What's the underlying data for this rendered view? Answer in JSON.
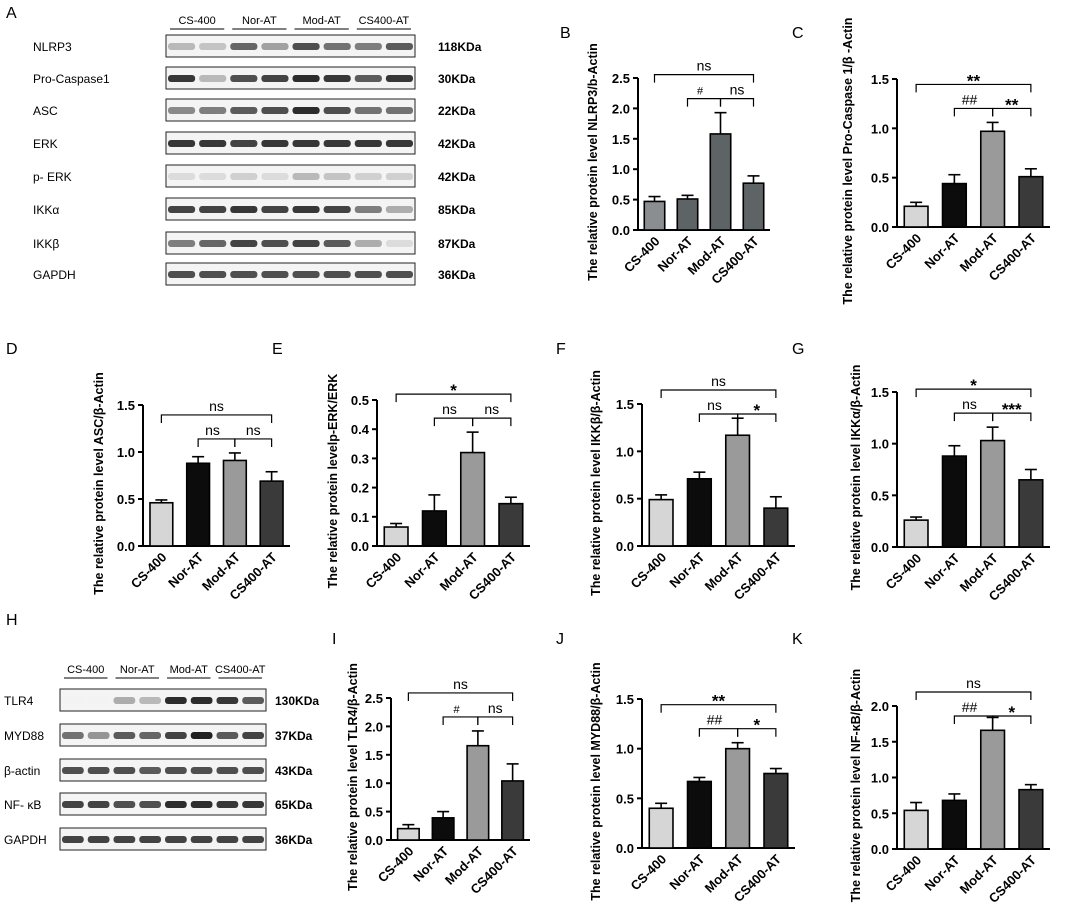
{
  "colors": {
    "light": "#d6d6d6",
    "black": "#0c0c0c",
    "midgray": "#9a9a9a",
    "dark": "#3a3a3a",
    "slate": "#5e6366",
    "slateLight": "#8a8e90"
  },
  "blot_top": {
    "letter": "A",
    "groups": [
      "CS-400",
      "Nor-AT",
      "Mod-AT",
      "CS400-AT"
    ],
    "rows": [
      {
        "name": "NLRP3",
        "size": "118KDa",
        "bands": [
          0.3,
          0.25,
          0.65,
          0.4,
          0.75,
          0.6,
          0.55,
          0.7
        ]
      },
      {
        "name": "Pro-Caspase1",
        "size": "30KDa",
        "bands": [
          0.85,
          0.3,
          0.75,
          0.8,
          0.9,
          0.85,
          0.7,
          0.85
        ]
      },
      {
        "name": "ASC",
        "size": "22KDa",
        "bands": [
          0.5,
          0.55,
          0.7,
          0.75,
          0.9,
          0.75,
          0.6,
          0.6
        ]
      },
      {
        "name": "ERK",
        "size": "42KDa",
        "bands": [
          0.85,
          0.85,
          0.8,
          0.85,
          0.85,
          0.85,
          0.85,
          0.85
        ]
      },
      {
        "name": "p- ERK",
        "size": "42KDa",
        "bands": [
          0.15,
          0.15,
          0.2,
          0.15,
          0.3,
          0.25,
          0.2,
          0.2
        ]
      },
      {
        "name": "IKKα",
        "size": "85KDa",
        "bands": [
          0.8,
          0.8,
          0.85,
          0.8,
          0.85,
          0.8,
          0.55,
          0.35
        ]
      },
      {
        "name": "IKKβ",
        "size": "87KDa",
        "bands": [
          0.55,
          0.65,
          0.8,
          0.75,
          0.8,
          0.7,
          0.35,
          0.15
        ]
      },
      {
        "name": "GAPDH",
        "size": "36KDa",
        "bands": [
          0.75,
          0.75,
          0.75,
          0.75,
          0.75,
          0.75,
          0.75,
          0.75
        ]
      }
    ]
  },
  "blot_bottom": {
    "letter": "H",
    "groups": [
      "CS-400",
      "Nor-AT",
      "Mod-AT",
      "CS400-AT"
    ],
    "rows": [
      {
        "name": "TLR4",
        "size": "130KDa",
        "bands": [
          0.05,
          0.05,
          0.35,
          0.3,
          0.9,
          0.9,
          0.85,
          0.7
        ]
      },
      {
        "name": "MYD88",
        "size": "37KDa",
        "bands": [
          0.6,
          0.45,
          0.7,
          0.65,
          0.8,
          0.95,
          0.7,
          0.8
        ]
      },
      {
        "name": "β-actin",
        "size": "43KDa",
        "bands": [
          0.75,
          0.75,
          0.75,
          0.7,
          0.75,
          0.75,
          0.75,
          0.75
        ]
      },
      {
        "name": "NF- κB",
        "size": "65KDa",
        "bands": [
          0.8,
          0.8,
          0.75,
          0.75,
          0.9,
          0.9,
          0.85,
          0.85
        ]
      },
      {
        "name": "GAPDH",
        "size": "36KDa",
        "bands": [
          0.8,
          0.8,
          0.8,
          0.8,
          0.8,
          0.8,
          0.8,
          0.8
        ]
      }
    ]
  },
  "chart_data": [
    {
      "type": "bar",
      "letter": "B",
      "categories": [
        "CS-400",
        "Nor-AT",
        "Mod-AT",
        "CS400-AT"
      ],
      "values": [
        0.47,
        0.51,
        1.58,
        0.77
      ],
      "errors": [
        0.08,
        0.06,
        0.35,
        0.12
      ],
      "ylabel": "The relative protein level NLRP3/b-Actin",
      "ylim": [
        0,
        2.5
      ],
      "yticks": [
        "0.0",
        "0.5",
        "1.0",
        "1.5",
        "2.0",
        "2.5"
      ],
      "palette": "slate",
      "annotations": [
        {
          "from": 0,
          "to": 3,
          "text": "ns"
        },
        {
          "from": 1,
          "to": 2,
          "text": "#"
        },
        {
          "from": 2,
          "to": 3,
          "text": "ns"
        }
      ]
    },
    {
      "type": "bar",
      "letter": "C",
      "categories": [
        "CS-400",
        "Nor-AT",
        "Mod-AT",
        "CS400-AT"
      ],
      "values": [
        0.21,
        0.44,
        0.97,
        0.51
      ],
      "errors": [
        0.04,
        0.09,
        0.09,
        0.08
      ],
      "ylabel": "The relative protein level Pro-Caspase 1/β -Actin",
      "ylim": [
        0,
        1.5
      ],
      "yticks": [
        "0.0",
        "0.5",
        "1.0",
        "1.5"
      ],
      "palette": "standard",
      "annotations": [
        {
          "from": 0,
          "to": 3,
          "text": "**"
        },
        {
          "from": 1,
          "to": 2,
          "text": "##"
        },
        {
          "from": 2,
          "to": 3,
          "text": "**"
        }
      ]
    },
    {
      "type": "bar",
      "letter": "D",
      "categories": [
        "CS-400",
        "Nor-AT",
        "Mod-AT",
        "CS400-AT"
      ],
      "values": [
        0.46,
        0.88,
        0.91,
        0.69
      ],
      "errors": [
        0.03,
        0.07,
        0.08,
        0.1
      ],
      "ylabel": "The relative protein level ASC/β-Actin",
      "ylim": [
        0,
        1.5
      ],
      "yticks": [
        "0.0",
        "0.5",
        "1.0",
        "1.5"
      ],
      "palette": "standard",
      "annotations": [
        {
          "from": 0,
          "to": 3,
          "text": "ns"
        },
        {
          "from": 1,
          "to": 2,
          "text": "ns"
        },
        {
          "from": 2,
          "to": 3,
          "text": "ns"
        }
      ]
    },
    {
      "type": "bar",
      "letter": "E",
      "categories": [
        "CS-400",
        "Nor-AT",
        "Mod-AT",
        "CS400-AT"
      ],
      "values": [
        0.065,
        0.12,
        0.32,
        0.145
      ],
      "errors": [
        0.012,
        0.055,
        0.07,
        0.022
      ],
      "ylabel": "The relative protein levelp-ERK/ERK",
      "ylim": [
        0,
        0.5
      ],
      "yticks": [
        "0.0",
        "0.1",
        "0.2",
        "0.3",
        "0.4",
        "0.5"
      ],
      "palette": "standard",
      "annotations": [
        {
          "from": 0,
          "to": 3,
          "text": "*"
        },
        {
          "from": 1,
          "to": 2,
          "text": "ns"
        },
        {
          "from": 2,
          "to": 3,
          "text": "ns"
        }
      ]
    },
    {
      "type": "bar",
      "letter": "F",
      "categories": [
        "CS-400",
        "Nor-AT",
        "Mod-AT",
        "CS400-AT"
      ],
      "values": [
        0.49,
        0.71,
        1.17,
        0.4
      ],
      "errors": [
        0.05,
        0.07,
        0.18,
        0.12
      ],
      "ylabel": "The relative protein level IKKβ/β-Actin",
      "ylim": [
        0,
        1.5
      ],
      "yticks": [
        "0.0",
        "0.5",
        "1.0",
        "1.5"
      ],
      "palette": "standard",
      "annotations": [
        {
          "from": 0,
          "to": 3,
          "text": "ns"
        },
        {
          "from": 1,
          "to": 2,
          "text": "ns"
        },
        {
          "from": 2,
          "to": 3,
          "text": "*"
        }
      ]
    },
    {
      "type": "bar",
      "letter": "G",
      "categories": [
        "CS-400",
        "Nor-AT",
        "Mod-AT",
        "CS400-AT"
      ],
      "values": [
        0.26,
        0.88,
        1.03,
        0.65
      ],
      "errors": [
        0.03,
        0.1,
        0.13,
        0.1
      ],
      "ylabel": "The relative protein level IKKα/β-Actin",
      "ylim": [
        0,
        1.5
      ],
      "yticks": [
        "0.0",
        "0.5",
        "1.0",
        "1.5"
      ],
      "palette": "standard",
      "annotations": [
        {
          "from": 0,
          "to": 3,
          "text": "*"
        },
        {
          "from": 1,
          "to": 2,
          "text": "ns"
        },
        {
          "from": 2,
          "to": 3,
          "text": "***"
        }
      ]
    },
    {
      "type": "bar",
      "letter": "I",
      "categories": [
        "CS-400",
        "Nor-AT",
        "Mod-AT",
        "CS400-AT"
      ],
      "values": [
        0.2,
        0.39,
        1.66,
        1.04
      ],
      "errors": [
        0.07,
        0.11,
        0.26,
        0.3
      ],
      "ylabel": "The relative protein level TLR4/β-Actin",
      "ylim": [
        0,
        2.5
      ],
      "yticks": [
        "0.0",
        "0.5",
        "1.0",
        "1.5",
        "2.0",
        "2.5"
      ],
      "palette": "standard",
      "annotations": [
        {
          "from": 0,
          "to": 3,
          "text": "ns"
        },
        {
          "from": 1,
          "to": 2,
          "text": "#"
        },
        {
          "from": 2,
          "to": 3,
          "text": "ns"
        }
      ]
    },
    {
      "type": "bar",
      "letter": "J",
      "categories": [
        "CS-400",
        "Nor-AT",
        "Mod-AT",
        "CS400-AT"
      ],
      "values": [
        0.4,
        0.67,
        1.0,
        0.75
      ],
      "errors": [
        0.05,
        0.04,
        0.06,
        0.05
      ],
      "ylabel": "The relative protein level MYD88/β-Actin",
      "ylim": [
        0,
        1.5
      ],
      "yticks": [
        "0.0",
        "0.5",
        "1.0",
        "1.5"
      ],
      "palette": "standard",
      "annotations": [
        {
          "from": 0,
          "to": 3,
          "text": "**"
        },
        {
          "from": 1,
          "to": 2,
          "text": "##"
        },
        {
          "from": 2,
          "to": 3,
          "text": "*"
        }
      ]
    },
    {
      "type": "bar",
      "letter": "K",
      "categories": [
        "CS-400",
        "Nor-AT",
        "Mod-AT",
        "CS400-AT"
      ],
      "values": [
        0.54,
        0.68,
        1.66,
        0.83
      ],
      "errors": [
        0.11,
        0.09,
        0.18,
        0.07
      ],
      "ylabel": "The relative protein level NF-κB/β-Actin",
      "ylim": [
        0,
        2.0
      ],
      "yticks": [
        "0.0",
        "0.5",
        "1.0",
        "1.5",
        "2.0"
      ],
      "palette": "standard",
      "annotations": [
        {
          "from": 0,
          "to": 3,
          "text": "ns"
        },
        {
          "from": 1,
          "to": 2,
          "text": "##"
        },
        {
          "from": 2,
          "to": 3,
          "text": "*"
        }
      ]
    }
  ]
}
